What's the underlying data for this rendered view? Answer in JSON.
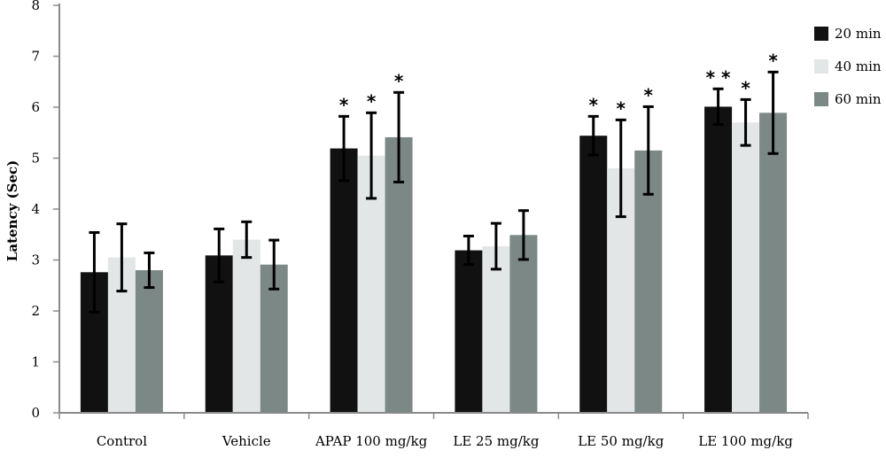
{
  "chart_data": {
    "type": "bar",
    "ylabel": "Latency (Sec)",
    "xlabel": "",
    "ylim": [
      0,
      8
    ],
    "yticks": [
      "0",
      "1",
      "2",
      "3",
      "4",
      "5",
      "6",
      "7",
      "8"
    ],
    "categories": [
      "Control",
      "Vehicle",
      "APAP 100 mg/kg",
      "LE 25 mg/kg",
      "LE 50 mg/kg",
      "LE 100 mg/kg"
    ],
    "legend_position": "top-right",
    "grid": false,
    "series": [
      {
        "name": "20 min",
        "color": "#111111",
        "values": [
          2.76,
          3.09,
          5.19,
          3.19,
          5.44,
          6.01
        ],
        "errors": [
          0.78,
          0.52,
          0.63,
          0.28,
          0.38,
          0.35
        ],
        "markers": [
          "",
          "",
          "*",
          "",
          "*",
          "* *"
        ]
      },
      {
        "name": "40 min",
        "color": "#e3e6e6",
        "values": [
          3.05,
          3.4,
          5.05,
          3.27,
          4.8,
          5.7
        ],
        "errors": [
          0.66,
          0.35,
          0.84,
          0.45,
          0.95,
          0.45
        ],
        "markers": [
          "",
          "",
          "*",
          "",
          "*",
          "*"
        ]
      },
      {
        "name": "60 min",
        "color": "#7b8886",
        "values": [
          2.8,
          2.91,
          5.41,
          3.49,
          5.15,
          5.89
        ],
        "errors": [
          0.34,
          0.48,
          0.88,
          0.48,
          0.86,
          0.8
        ],
        "markers": [
          "",
          "",
          "*",
          "",
          "*",
          "*"
        ]
      }
    ]
  }
}
